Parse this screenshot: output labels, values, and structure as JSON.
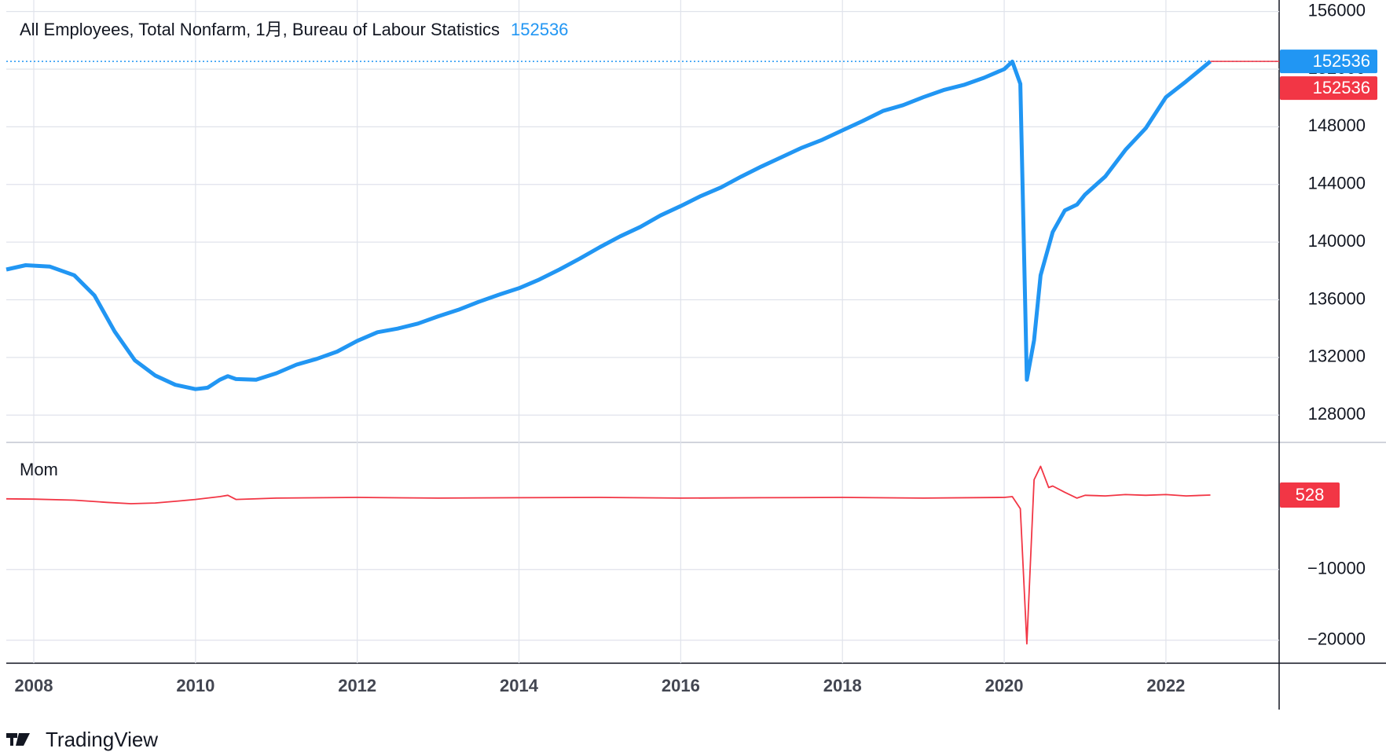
{
  "chart_data": [
    {
      "type": "line",
      "x": [
        2007.66,
        2007.9,
        2008.2,
        2008.5,
        2008.75,
        2009.0,
        2009.25,
        2009.5,
        2009.75,
        2010.0,
        2010.15,
        2010.3,
        2010.4,
        2010.5,
        2010.75,
        2011.0,
        2011.25,
        2011.5,
        2011.75,
        2012.0,
        2012.25,
        2012.5,
        2012.75,
        2013.0,
        2013.25,
        2013.5,
        2013.75,
        2014.0,
        2014.25,
        2014.5,
        2014.75,
        2015.0,
        2015.25,
        2015.5,
        2015.75,
        2016.0,
        2016.25,
        2016.5,
        2016.75,
        2017.0,
        2017.25,
        2017.5,
        2017.75,
        2018.0,
        2018.25,
        2018.5,
        2018.75,
        2019.0,
        2019.25,
        2019.5,
        2019.75,
        2020.0,
        2020.1,
        2020.2,
        2020.28,
        2020.37,
        2020.45,
        2020.6,
        2020.75,
        2020.9,
        2021.0,
        2021.25,
        2021.5,
        2021.75,
        2022.0,
        2022.25,
        2022.55
      ],
      "series": [
        {
          "name": "All Employees, Total Nonfarm, 1月, Bureau of Labour Statistics",
          "color": "#2196f3",
          "values": [
            138100,
            138400,
            138300,
            137700,
            136300,
            133800,
            131800,
            130750,
            130100,
            129800,
            129900,
            130450,
            130700,
            130500,
            130450,
            130900,
            131500,
            131900,
            132400,
            133150,
            133750,
            134000,
            134350,
            134850,
            135300,
            135850,
            136350,
            136800,
            137400,
            138100,
            138850,
            139650,
            140400,
            141050,
            141850,
            142500,
            143200,
            143800,
            144550,
            145250,
            145900,
            146550,
            147100,
            147750,
            148400,
            149100,
            149500,
            150050,
            150550,
            150900,
            151400,
            152000,
            152523,
            150980,
            130450,
            133200,
            137700,
            140700,
            142200,
            142600,
            143300,
            144550,
            146400,
            147900,
            150050,
            151150,
            152536
          ]
        }
      ],
      "xlim": [
        2007.66,
        2023.4
      ],
      "xticks": [
        2008,
        2010,
        2012,
        2014,
        2016,
        2018,
        2020,
        2022
      ],
      "ylim": [
        126160,
        156490
      ],
      "yticks": [
        128000,
        132000,
        136000,
        140000,
        144000,
        148000,
        152000,
        156000
      ],
      "grid": true
    },
    {
      "type": "line",
      "x": [
        2007.66,
        2008.0,
        2008.5,
        2008.9,
        2009.2,
        2009.5,
        2009.8,
        2010.0,
        2010.3,
        2010.4,
        2010.5,
        2011.0,
        2012.0,
        2013.0,
        2014.0,
        2015.0,
        2016.0,
        2017.0,
        2018.0,
        2019.0,
        2020.0,
        2020.1,
        2020.2,
        2020.28,
        2020.37,
        2020.45,
        2020.55,
        2020.6,
        2020.75,
        2020.9,
        2021.0,
        2021.25,
        2021.5,
        2021.75,
        2022.0,
        2022.25,
        2022.55
      ],
      "series": [
        {
          "name": "Mom",
          "color": "#f23645",
          "values": [
            0,
            -50,
            -200,
            -500,
            -700,
            -600,
            -300,
            -100,
            300,
            500,
            -100,
            100,
            200,
            100,
            150,
            200,
            100,
            150,
            200,
            100,
            200,
            300,
            -1400,
            -20500,
            2700,
            4600,
            1600,
            1800,
            900,
            100,
            500,
            400,
            600,
            500,
            600,
            400,
            528
          ]
        }
      ],
      "xlim": [
        2007.66,
        2023.4
      ],
      "ylim": [
        -23250,
        7750
      ],
      "yticks": [
        {
          "value": -10000,
          "label": "−10000"
        },
        {
          "value": -20000,
          "label": "−20000"
        }
      ],
      "grid": true
    }
  ],
  "footer": {
    "brand": "TradingView"
  }
}
